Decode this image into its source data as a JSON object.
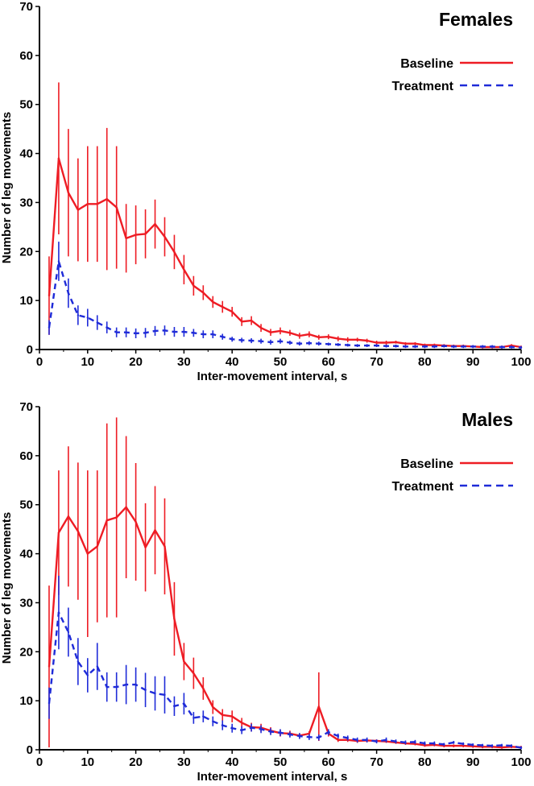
{
  "chart_data": [
    {
      "type": "line",
      "title": "Females",
      "xlabel": "Inter-movement interval, s",
      "ylabel": "Number of leg movements",
      "xlim": [
        0,
        100
      ],
      "ylim": [
        0,
        70
      ],
      "xticks": [
        "0",
        "10",
        "20",
        "30",
        "40",
        "50",
        "60",
        "70",
        "80",
        "90",
        "100"
      ],
      "yticks": [
        "0",
        "10",
        "20",
        "30",
        "40",
        "50",
        "60",
        "70"
      ],
      "legend_position": "top-right",
      "grid": false,
      "x": [
        2,
        4,
        6,
        8,
        10,
        12,
        14,
        16,
        18,
        20,
        22,
        24,
        26,
        28,
        30,
        32,
        34,
        36,
        38,
        40,
        42,
        44,
        46,
        48,
        50,
        52,
        54,
        56,
        58,
        60,
        62,
        64,
        66,
        68,
        70,
        72,
        74,
        76,
        78,
        80,
        82,
        84,
        86,
        88,
        90,
        92,
        94,
        96,
        98,
        100
      ],
      "series": [
        {
          "name": "Baseline",
          "color": "#ee1c24",
          "style": "solid",
          "values": [
            11,
            39,
            32,
            28.5,
            29.7,
            29.7,
            30.7,
            29.0,
            22.7,
            23.4,
            23.6,
            25.6,
            23.0,
            19.9,
            16.3,
            13.0,
            11.6,
            9.7,
            8.7,
            7.7,
            5.7,
            5.9,
            4.4,
            3.5,
            3.8,
            3.4,
            2.8,
            3.1,
            2.5,
            2.6,
            2.2,
            2.0,
            2.0,
            1.8,
            1.4,
            1.4,
            1.5,
            1.2,
            1.2,
            0.9,
            0.9,
            0.8,
            0.7,
            0.7,
            0.6,
            0.5,
            0.5,
            0.5,
            0.8,
            0.5
          ],
          "error": [
            8,
            15.5,
            13,
            10.5,
            11.8,
            11.8,
            14.5,
            12.5,
            7,
            6,
            5,
            5,
            4,
            3.5,
            3,
            2,
            1.5,
            1.2,
            1.2,
            1,
            0.9,
            0.9,
            0.8,
            0.7,
            0.7,
            0.6,
            0.6,
            0.6,
            0.5,
            0.5,
            0.5,
            0.5,
            0.4,
            0.4,
            0.4,
            0.4,
            0.3,
            0.3,
            0.3,
            0.3,
            0.3,
            0.3,
            0.3,
            0.3,
            0.3,
            0.3,
            0.3,
            0.3,
            0.3,
            0.3
          ]
        },
        {
          "name": "Treatment",
          "color": "#1f2bd8",
          "style": "dashed",
          "values": [
            4.5,
            18,
            11.5,
            7,
            6.5,
            5.5,
            4.5,
            3.5,
            3.5,
            3.3,
            3.4,
            3.8,
            3.9,
            3.6,
            3.6,
            3.4,
            3.1,
            3.1,
            2.6,
            2.1,
            1.9,
            1.8,
            1.7,
            1.5,
            1.7,
            1.4,
            1.2,
            1.3,
            1.2,
            1.1,
            1.0,
            0.9,
            0.8,
            0.8,
            0.8,
            0.7,
            0.7,
            0.6,
            0.6,
            0.6,
            0.6,
            0.7,
            0.6,
            0.6,
            0.6,
            0.6,
            0.6,
            0.5,
            0.5,
            0.4
          ],
          "error": [
            1.5,
            4,
            3,
            2,
            1.8,
            1.5,
            1.2,
            1,
            1,
            1,
            1,
            1,
            1,
            1,
            1,
            0.8,
            0.8,
            0.8,
            0.6,
            0.5,
            0.5,
            0.5,
            0.5,
            0.5,
            0.5,
            0.4,
            0.4,
            0.4,
            0.4,
            0.3,
            0.3,
            0.3,
            0.3,
            0.3,
            0.3,
            0.3,
            0.3,
            0.3,
            0.3,
            0.3,
            0.3,
            0.3,
            0.3,
            0.3,
            0.3,
            0.3,
            0.3,
            0.3,
            0.3,
            0.3
          ]
        }
      ]
    },
    {
      "type": "line",
      "title": "Males",
      "xlabel": "Inter-movement interval, s",
      "ylabel": "Number of leg movements",
      "xlim": [
        0,
        100
      ],
      "ylim": [
        0,
        70
      ],
      "xticks": [
        "0",
        "10",
        "20",
        "30",
        "40",
        "50",
        "60",
        "70",
        "80",
        "90",
        "100"
      ],
      "yticks": [
        "0",
        "10",
        "20",
        "30",
        "40",
        "50",
        "60",
        "70"
      ],
      "legend_position": "top-right",
      "grid": false,
      "x": [
        2,
        4,
        6,
        8,
        10,
        12,
        14,
        16,
        18,
        20,
        22,
        24,
        26,
        28,
        30,
        32,
        34,
        36,
        38,
        40,
        42,
        44,
        46,
        48,
        50,
        52,
        54,
        56,
        58,
        60,
        62,
        64,
        66,
        68,
        70,
        72,
        74,
        76,
        78,
        80,
        82,
        84,
        86,
        88,
        90,
        92,
        94,
        96,
        98,
        100
      ],
      "series": [
        {
          "name": "Baseline",
          "color": "#ee1c24",
          "style": "solid",
          "values": [
            17,
            44.3,
            47.6,
            44.6,
            40,
            41.5,
            46.8,
            47.4,
            49.5,
            46.5,
            41.3,
            44.8,
            41.5,
            26.7,
            18,
            15.6,
            12.5,
            8.7,
            7.1,
            6.8,
            5.5,
            4.6,
            4.5,
            3.9,
            3.4,
            3.3,
            2.9,
            3.3,
            8.8,
            3.3,
            2.0,
            2.0,
            1.8,
            1.9,
            1.8,
            1.7,
            1.5,
            1.3,
            1.2,
            0.9,
            1.0,
            0.8,
            0.8,
            0.8,
            0.7,
            0.6,
            0.6,
            0.5,
            0.6,
            0.5
          ],
          "error": [
            16.5,
            12.7,
            14.3,
            14,
            17,
            15.5,
            19.8,
            20.4,
            14.5,
            12,
            9,
            9,
            9.8,
            7.5,
            3.8,
            3.2,
            2.3,
            1.4,
            1.2,
            1.2,
            1,
            0.9,
            0.8,
            0.7,
            0.7,
            0.6,
            0.5,
            0.5,
            7.0,
            0.6,
            0.4,
            0.4,
            0.4,
            0.4,
            0.3,
            0.3,
            0.3,
            0.3,
            0.3,
            0.3,
            0.3,
            0.3,
            0.3,
            0.3,
            0.3,
            0.3,
            0.3,
            0.3,
            0.3,
            0.3
          ]
        },
        {
          "name": "Treatment",
          "color": "#1f2bd8",
          "style": "dashed",
          "values": [
            9.5,
            28,
            24,
            18,
            15.2,
            17,
            12.8,
            12.8,
            13.3,
            13.3,
            12.2,
            11.5,
            11.2,
            8.9,
            9.4,
            6.5,
            6.8,
            5.8,
            5.0,
            4.4,
            4.0,
            4.5,
            4.2,
            3.7,
            3.5,
            3.1,
            2.8,
            2.6,
            2.5,
            3.6,
            2.8,
            2.4,
            2.0,
            2.0,
            1.7,
            2.0,
            1.7,
            1.5,
            1.6,
            1.3,
            1.3,
            1.1,
            1.5,
            1.2,
            1.0,
            0.9,
            0.8,
            0.9,
            0.8,
            0.4
          ],
          "error": [
            3.2,
            7.5,
            5,
            4.8,
            3.5,
            4.8,
            3,
            3,
            4,
            3.5,
            3.5,
            3.5,
            3.8,
            2,
            2.2,
            1.2,
            1.2,
            1,
            1,
            0.9,
            0.8,
            0.8,
            0.8,
            0.7,
            0.7,
            0.6,
            0.6,
            0.6,
            0.6,
            0.6,
            0.5,
            0.5,
            0.5,
            0.5,
            0.4,
            0.5,
            0.4,
            0.4,
            0.4,
            0.4,
            0.4,
            0.3,
            0.3,
            0.3,
            0.3,
            0.3,
            0.3,
            0.3,
            0.3,
            0.3
          ]
        }
      ]
    }
  ]
}
